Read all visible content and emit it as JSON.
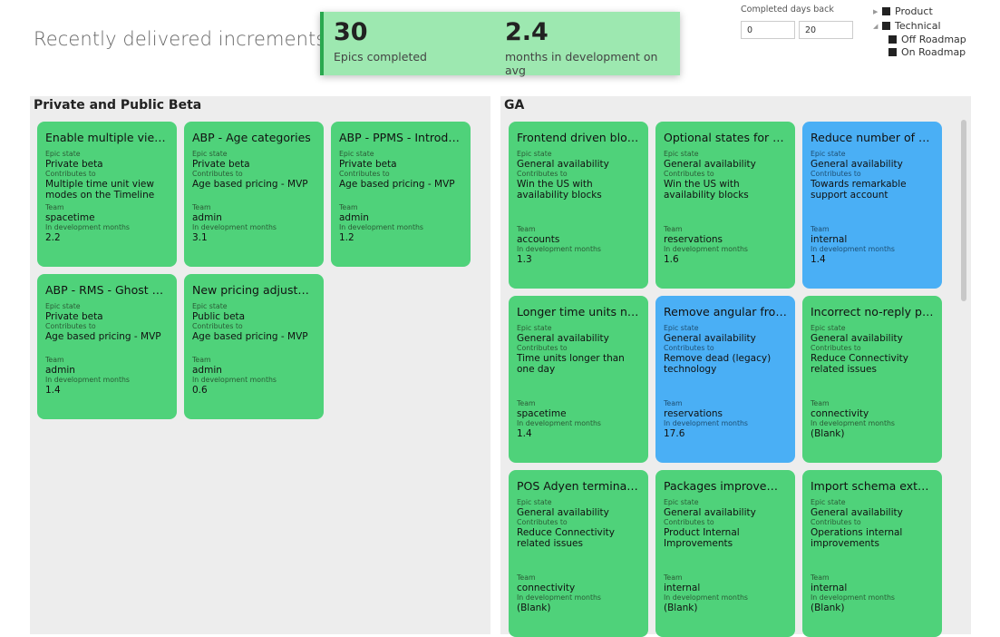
{
  "header": {
    "title": "Recently delivered increments"
  },
  "kpis": [
    {
      "value": "30",
      "label": "Epics completed"
    },
    {
      "value": "2.4",
      "label": "months in development on avg"
    }
  ],
  "filter": {
    "label": "Completed days back",
    "from": "0",
    "to": "20"
  },
  "legend": {
    "items": [
      "Product",
      "Technical",
      "Off Roadmap",
      "On Roadmap"
    ]
  },
  "field_labels": {
    "epic_state": "Epic state",
    "contributes_to": "Contributes to",
    "team": "Team",
    "dev_months": "In development months"
  },
  "colors": {
    "green_card": "#4fd27a",
    "blue_card": "#4aaff5",
    "kpi_bg": "#9de8b0"
  },
  "panels": {
    "beta": {
      "title": "Private and Public Beta",
      "cards": [
        {
          "title": "Enable multiple view ...",
          "state": "Private beta",
          "contributes": "Multiple time unit view modes on the Timeline",
          "team": "spacetime",
          "months": "2.2",
          "color": "green"
        },
        {
          "title": "ABP - Age categories",
          "state": "Private beta",
          "contributes": "Age based pricing - MVP",
          "team": "admin",
          "months": "3.1",
          "color": "green"
        },
        {
          "title": "ABP - PPMS - Introdu...",
          "state": "Private beta",
          "contributes": "Age based pricing - MVP",
          "team": "admin",
          "months": "1.2",
          "color": "green"
        },
        {
          "title": "ABP - RMS - Ghost p...",
          "state": "Private beta",
          "contributes": "Age based pricing - MVP",
          "team": "admin",
          "months": "1.4",
          "color": "green"
        },
        {
          "title": "New pricing adjustme...",
          "state": "Public beta",
          "contributes": "Age based pricing - MVP",
          "team": "admin",
          "months": "0.6",
          "color": "green"
        }
      ]
    },
    "ga": {
      "title": "GA",
      "cards": [
        {
          "title": "Frontend driven block...",
          "state": "General availability",
          "contributes": "Win the US with availability blocks",
          "team": "accounts",
          "months": "1.3",
          "color": "green"
        },
        {
          "title": "Optional states for blo...",
          "state": "General availability",
          "contributes": "Win the US with availability blocks",
          "team": "reservations",
          "months": "1.6",
          "color": "green"
        },
        {
          "title": "Reduce number of no...",
          "state": "General availability",
          "contributes": "Towards remarkable support account",
          "team": "internal",
          "months": "1.4",
          "color": "blue"
        },
        {
          "title": "Longer time units nig...",
          "state": "General availability",
          "contributes": "Time units longer than one day",
          "team": "spacetime",
          "months": "1.4",
          "color": "green"
        },
        {
          "title": "Remove angular from...",
          "state": "General availability",
          "contributes": "Remove dead (legacy) technology",
          "team": "reservations",
          "months": "17.6",
          "color": "blue"
        },
        {
          "title": "Incorrect no-reply pro...",
          "state": "General availability",
          "contributes": "Reduce Connectivity related issues",
          "team": "connectivity",
          "months": "(Blank)",
          "color": "green"
        },
        {
          "title": "POS Adyen terminal ...",
          "state": "General availability",
          "contributes": "Reduce Connectivity related issues",
          "team": "connectivity",
          "months": "(Blank)",
          "color": "green"
        },
        {
          "title": "Packages improveme...",
          "state": "General availability",
          "contributes": "Product Internal Improvements",
          "team": "internal",
          "months": "(Blank)",
          "color": "green"
        },
        {
          "title": "Import schema exten...",
          "state": "General availability",
          "contributes": "Operations internal improvements",
          "team": "internal",
          "months": "(Blank)",
          "color": "green"
        }
      ]
    }
  }
}
